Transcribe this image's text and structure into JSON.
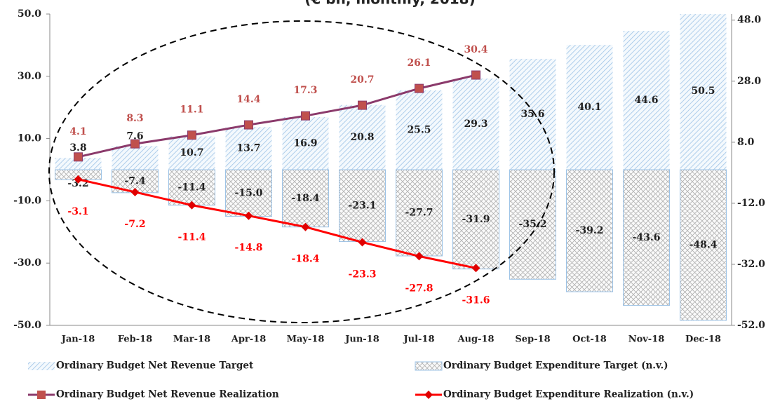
{
  "chart_data": {
    "type": "bar",
    "title": "(€ bn, monthly, 2018)",
    "categories": [
      "Jan-18",
      "Feb-18",
      "Mar-18",
      "Apr-18",
      "May-18",
      "Jun-18",
      "Jul-18",
      "Aug-18",
      "Sep-18",
      "Oct-18",
      "Nov-18",
      "Dec-18"
    ],
    "ylim": [
      -50,
      50
    ],
    "yticks": [
      {
        "value": -50,
        "label": "-50.0"
      },
      {
        "value": -30,
        "label": "-30.0"
      },
      {
        "value": -10,
        "label": "-10.0"
      },
      {
        "value": 10,
        "label": "10.0"
      },
      {
        "value": 30,
        "label": "30.0"
      },
      {
        "value": 50,
        "label": "50.0"
      }
    ],
    "y2lim": [
      -52,
      50
    ],
    "y2ticks": [
      {
        "value": -52,
        "label": "-52.0"
      },
      {
        "value": -32,
        "label": "-32.0"
      },
      {
        "value": -12,
        "label": "-12.0"
      },
      {
        "value": 8,
        "label": "8.0"
      },
      {
        "value": 28,
        "label": "28.0"
      },
      {
        "value": 48,
        "label": "48.0"
      }
    ],
    "legend": "bottom",
    "series": [
      {
        "name": "Ordinary Budget Net Revenue Target",
        "type": "bar",
        "color": "#9dc3e6",
        "values": [
          3.8,
          7.6,
          10.7,
          13.7,
          16.9,
          20.8,
          25.5,
          29.3,
          35.6,
          40.1,
          44.6,
          50.5
        ],
        "value_labels": [
          "3.8",
          "7.6",
          "10.7",
          "13.7",
          "16.9",
          "20.8",
          "25.5",
          "29.3",
          "35.6",
          "40.1",
          "44.6",
          "50.5"
        ]
      },
      {
        "name": "Ordinary Budget Expenditure Target (n.v.)",
        "type": "bar",
        "color": "#9dc3e6",
        "values": [
          -3.2,
          -7.4,
          -11.4,
          -15.0,
          -18.4,
          -23.1,
          -27.7,
          -31.9,
          -35.2,
          -39.2,
          -43.6,
          -48.4
        ],
        "value_labels": [
          "-3.2",
          "-7.4",
          "-11.4",
          "-15.0",
          "-18.4",
          "-23.1",
          "-27.7",
          "-31.9",
          "-35.2",
          "-39.2",
          "-43.6",
          "-48.4"
        ]
      },
      {
        "name": "Ordinary Budget Net Revenue Realization",
        "type": "line",
        "color": "#8b3a6b",
        "marker_color": "#c0504d",
        "values": [
          4.1,
          8.3,
          11.1,
          14.4,
          17.3,
          20.7,
          26.1,
          30.4,
          null,
          null,
          null,
          null
        ],
        "value_labels": [
          "4.1",
          "8.3",
          "11.1",
          "14.4",
          "17.3",
          "20.7",
          "26.1",
          "30.4",
          null,
          null,
          null,
          null
        ]
      },
      {
        "name": "Ordinary Budget Expenditure Realization (n.v.)",
        "type": "line",
        "color": "#ff0000",
        "marker_color": "#e00000",
        "values": [
          -3.1,
          -7.2,
          -11.4,
          -14.8,
          -18.4,
          -23.3,
          -27.8,
          -31.6,
          null,
          null,
          null,
          null
        ],
        "value_labels": [
          "-3.1",
          "-7.2",
          "-11.4",
          "-14.8",
          "-18.4",
          "-23.3",
          "-27.8",
          "-31.6",
          null,
          null,
          null,
          null
        ]
      }
    ]
  }
}
